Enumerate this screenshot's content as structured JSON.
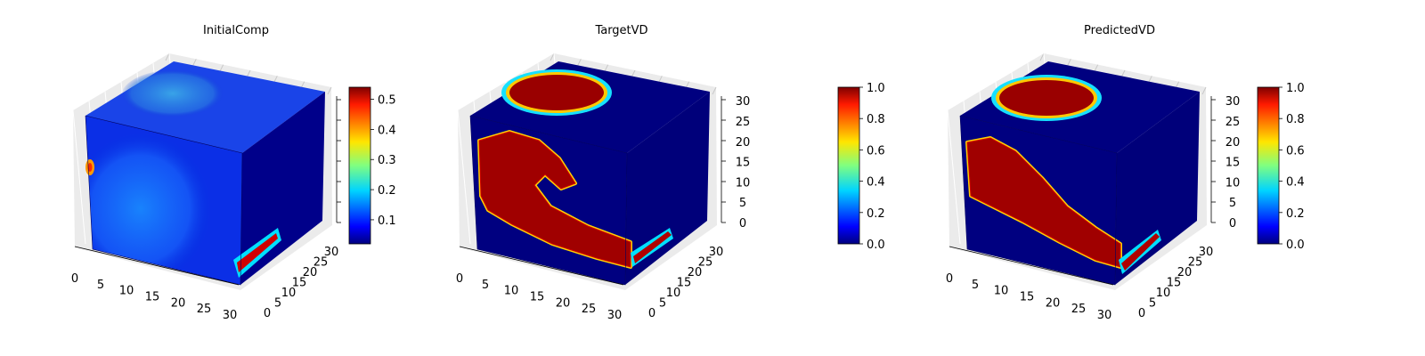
{
  "figure": {
    "colormap": "jet",
    "colormap_stops": [
      "#00007f",
      "#0000ff",
      "#0080ff",
      "#00ffff",
      "#80ff80",
      "#ffff00",
      "#ff8000",
      "#ff0000",
      "#7f0000"
    ],
    "pane_color": "#ebebeb"
  },
  "chart_data": [
    {
      "type": "heatmap",
      "title": "InitialComp",
      "x_ticks": [
        "0",
        "5",
        "10",
        "15",
        "20",
        "25",
        "30"
      ],
      "y_ticks": [
        "0",
        "5",
        "10",
        "15",
        "20",
        "25",
        "30"
      ],
      "z_ticks": [],
      "colorbar": {
        "ticks": [
          "0.1",
          "0.2",
          "0.3",
          "0.4",
          "0.5"
        ],
        "range": [
          0.02,
          0.54
        ]
      }
    },
    {
      "type": "heatmap",
      "title": "TargetVD",
      "x_ticks": [
        "0",
        "5",
        "10",
        "15",
        "20",
        "25",
        "30"
      ],
      "y_ticks": [
        "0",
        "5",
        "10",
        "15",
        "20",
        "25",
        "30"
      ],
      "z_ticks": [
        "0",
        "5",
        "10",
        "15",
        "20",
        "25",
        "30"
      ],
      "colorbar": {
        "ticks": [
          "0.0",
          "0.2",
          "0.4",
          "0.6",
          "0.8",
          "1.0"
        ],
        "range": [
          0.0,
          1.0
        ]
      }
    },
    {
      "type": "heatmap",
      "title": "PredictedVD",
      "x_ticks": [
        "0",
        "5",
        "10",
        "15",
        "20",
        "25",
        "30"
      ],
      "y_ticks": [
        "0",
        "5",
        "10",
        "15",
        "20",
        "25",
        "30"
      ],
      "z_ticks": [
        "0",
        "5",
        "10",
        "15",
        "20",
        "25",
        "30"
      ],
      "colorbar": {
        "ticks": [
          "0.0",
          "0.2",
          "0.4",
          "0.6",
          "0.8",
          "1.0"
        ],
        "range": [
          0.0,
          1.0
        ]
      }
    }
  ]
}
